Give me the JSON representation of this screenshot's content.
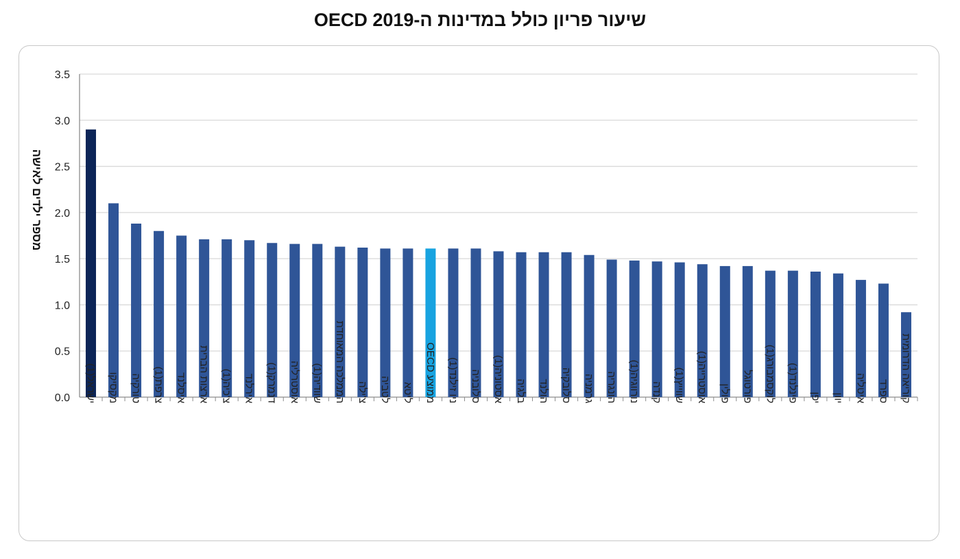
{
  "chart_data": {
    "type": "bar",
    "title": "שיעור פריון כולל במדינות ה-OECD 2019",
    "xlabel": "",
    "ylabel": "מספר ילדים לאישה",
    "ylim": [
      0,
      3.5
    ],
    "yticks": [
      "0.0",
      "0.5",
      "1.0",
      "1.5",
      "2.0",
      "2.5",
      "3.0",
      "3.5"
    ],
    "grid": true,
    "legend": "none",
    "categories": [
      "ישראל(1)",
      "מקסיקו",
      "טורקיה",
      "צרפת(1)",
      "איסלנד",
      "ארצות הברית",
      "צ'כיה(1)",
      "אירלנד",
      "דנמרק(1)",
      "אוסטרליה",
      "שוודיה(1)",
      "הממלכה המאוחדת",
      "צ'ילה",
      "לטביה",
      "ליטא",
      "ממוצע OECD",
      "ניו זילנד(1)",
      "סלובניה",
      "אסטוניה(1)",
      "בלגיה",
      "הולנד",
      "סלובקיה",
      "גרמניה",
      "הונגריה",
      "נורווגיה(1)",
      "קנדה",
      "שווייץ(1)",
      "אוסטרייה(1)",
      "פולין",
      "פורטוגל",
      "לוקסמבורג(1)",
      "פינלנד(1)",
      "יפן",
      "יוון",
      "איטליה",
      "ספרד",
      "קוריאה הדרומית"
    ],
    "values": [
      2.9,
      2.1,
      1.88,
      1.8,
      1.75,
      1.71,
      1.71,
      1.7,
      1.67,
      1.66,
      1.66,
      1.63,
      1.62,
      1.61,
      1.61,
      1.61,
      1.61,
      1.61,
      1.58,
      1.57,
      1.57,
      1.57,
      1.54,
      1.49,
      1.48,
      1.47,
      1.46,
      1.44,
      1.42,
      1.42,
      1.37,
      1.37,
      1.36,
      1.34,
      1.27,
      1.23,
      0.92
    ],
    "colors": {
      "default": "#2f5597",
      "highlight_israel": "#0c2557",
      "highlight_oecd_average": "#18a3e0",
      "grid": "#d9d9d9",
      "axis": "#8c8c8c"
    }
  }
}
